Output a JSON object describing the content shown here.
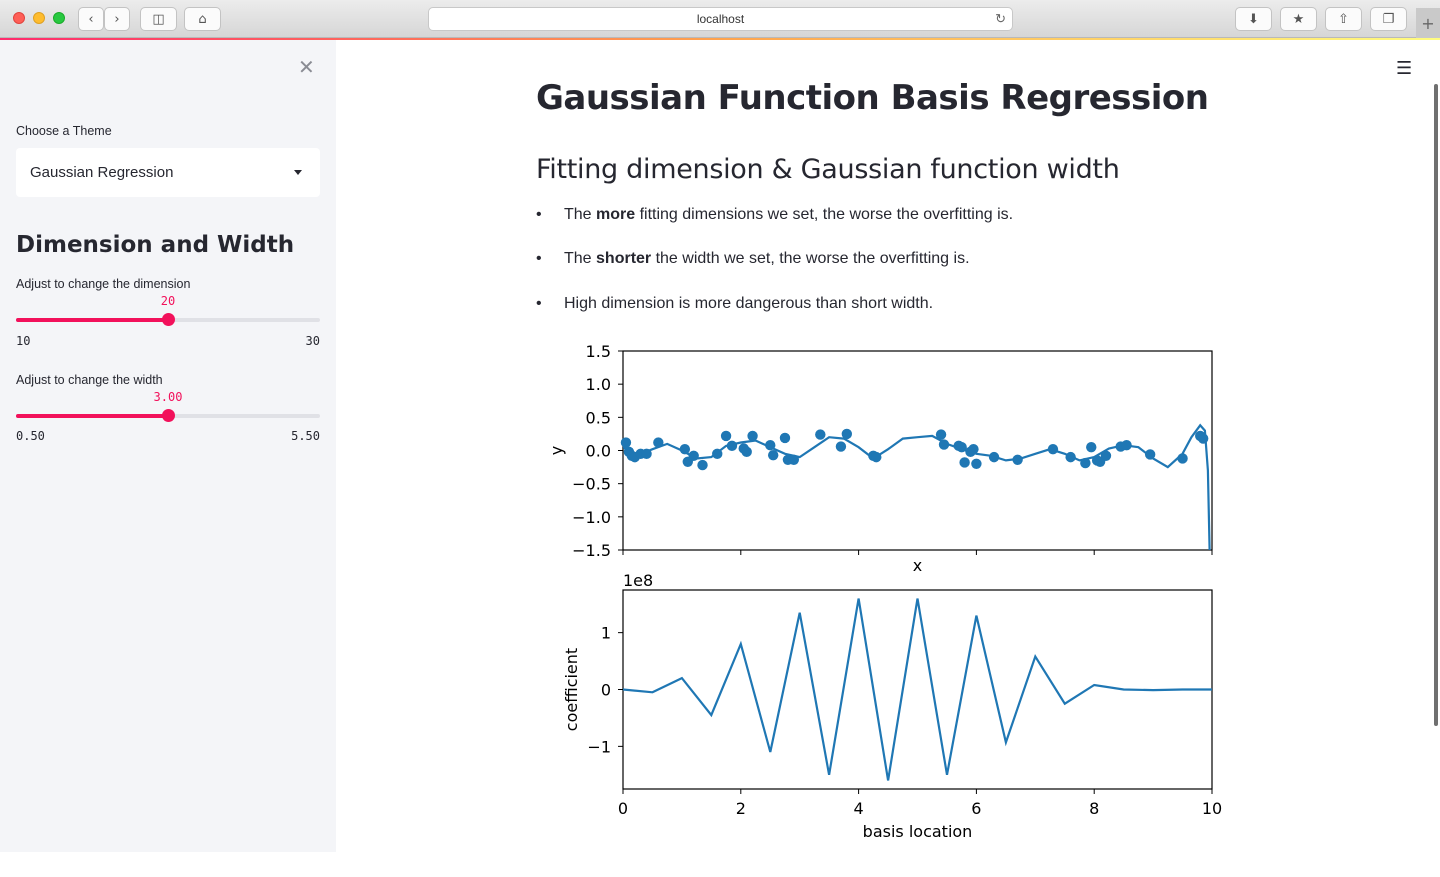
{
  "browser": {
    "url": "localhost",
    "icons": [
      "back-icon",
      "forward-icon",
      "sidebar-icon",
      "home-icon",
      "reload-icon",
      "download-icon",
      "bookmark-icon",
      "share-icon",
      "tabs-icon",
      "new-tab-icon"
    ]
  },
  "sidebar": {
    "theme_label": "Choose a Theme",
    "theme_value": "Gaussian Regression",
    "heading": "Dimension and Width",
    "dimension_slider": {
      "label": "Adjust to change the dimension",
      "value": "20",
      "min": "10",
      "max": "30",
      "fraction": 0.5
    },
    "width_slider": {
      "label": "Adjust to change the width",
      "value": "3.00",
      "min": "0.50",
      "max": "5.50",
      "fraction": 0.5
    },
    "accent_color": "#f2115b"
  },
  "main": {
    "title": "Gaussian Function Basis Regression",
    "subtitle": "Fitting dimension & Gaussian function width",
    "bullets": [
      {
        "pre": "The ",
        "bold": "more",
        "post": " fitting dimensions we set, the worse the overfitting is."
      },
      {
        "pre": "The ",
        "bold": "shorter",
        "post": " the width we set, the worse the overfitting is."
      },
      {
        "pre": "",
        "bold": "",
        "post": "High dimension is more dangerous than short width."
      }
    ]
  },
  "chart_data": [
    {
      "type": "scatter",
      "xlabel": "x",
      "ylabel": "y",
      "xlim": [
        0,
        10
      ],
      "ylim": [
        -1.5,
        1.5
      ],
      "yticks": [
        "1.5",
        "1.0",
        "0.5",
        "0.0",
        "−0.5",
        "−1.0",
        "−1.5"
      ],
      "ytick_values": [
        1.5,
        1.0,
        0.5,
        0.0,
        -0.5,
        -1.0,
        -1.5
      ],
      "xticks_values": [
        0,
        2,
        4,
        6,
        8,
        10
      ],
      "color": "#1f77b4",
      "points": {
        "x": [
          0.05,
          0.1,
          0.15,
          0.2,
          0.3,
          0.4,
          0.6,
          1.05,
          1.1,
          1.2,
          1.35,
          1.6,
          1.75,
          1.85,
          2.05,
          2.1,
          2.2,
          2.5,
          2.55,
          2.75,
          2.8,
          2.9,
          3.35,
          3.7,
          3.8,
          4.25,
          4.3,
          5.4,
          5.45,
          5.7,
          5.75,
          5.8,
          5.9,
          5.95,
          6.0,
          6.3,
          6.7,
          7.3,
          7.6,
          7.85,
          7.95,
          8.05,
          8.1,
          8.2,
          8.45,
          8.55,
          8.95,
          9.5,
          9.8,
          9.85
        ],
        "y": [
          0.12,
          -0.02,
          -0.08,
          -0.1,
          -0.05,
          -0.05,
          0.12,
          0.02,
          -0.17,
          -0.08,
          -0.22,
          -0.05,
          0.22,
          0.07,
          0.03,
          -0.02,
          0.22,
          0.08,
          -0.07,
          0.19,
          -0.14,
          -0.14,
          0.24,
          0.06,
          0.25,
          -0.08,
          -0.1,
          0.24,
          0.09,
          0.07,
          0.05,
          -0.18,
          -0.02,
          0.02,
          -0.2,
          -0.1,
          -0.14,
          0.02,
          -0.1,
          -0.19,
          0.05,
          -0.15,
          -0.17,
          -0.08,
          0.06,
          0.08,
          -0.06,
          -0.12,
          0.22,
          0.18
        ]
      },
      "curve": {
        "x": [
          0,
          0.25,
          0.5,
          0.75,
          1.0,
          1.25,
          1.5,
          1.75,
          2.0,
          2.25,
          2.5,
          2.75,
          3.0,
          3.25,
          3.5,
          3.75,
          4.0,
          4.25,
          4.5,
          4.75,
          5.0,
          5.25,
          5.5,
          5.75,
          6.0,
          6.25,
          6.5,
          6.75,
          7.0,
          7.25,
          7.5,
          7.75,
          8.0,
          8.25,
          8.5,
          8.75,
          9.0,
          9.25,
          9.5,
          9.65,
          9.8,
          9.88,
          9.93,
          9.96
        ],
        "y": [
          0.05,
          -0.07,
          0.02,
          0.1,
          0.0,
          -0.12,
          -0.1,
          0.07,
          0.12,
          0.15,
          0.05,
          -0.05,
          -0.1,
          0.05,
          0.2,
          0.18,
          0.05,
          -0.12,
          0.02,
          0.18,
          0.2,
          0.22,
          0.1,
          0.02,
          -0.05,
          -0.08,
          -0.15,
          -0.12,
          -0.05,
          0.02,
          -0.05,
          -0.15,
          -0.1,
          0.03,
          0.08,
          0.05,
          -0.12,
          -0.25,
          -0.05,
          0.2,
          0.38,
          0.3,
          -0.3,
          -1.5
        ]
      }
    },
    {
      "type": "line",
      "xlabel": "basis location",
      "ylabel": "coefficient",
      "offset_label": "1e8",
      "xlim": [
        0,
        10
      ],
      "ylim": [
        -1.75,
        1.75
      ],
      "yticks": [
        "1",
        "0",
        "−1"
      ],
      "ytick_values": [
        1,
        0,
        -1
      ],
      "xticks": [
        "0",
        "2",
        "4",
        "6",
        "8",
        "10"
      ],
      "xtick_values": [
        0,
        2,
        4,
        6,
        8,
        10
      ],
      "color": "#1f77b4",
      "series": [
        {
          "x": [
            0.0,
            0.5,
            1.0,
            1.5,
            2.0,
            2.5,
            3.0,
            3.5,
            4.0,
            4.5,
            5.0,
            5.5,
            6.0,
            6.5,
            7.0,
            7.5,
            8.0,
            8.5,
            9.0,
            9.5,
            10.0
          ],
          "values": [
            0.0,
            -0.05,
            0.2,
            -0.45,
            0.8,
            -1.1,
            1.35,
            -1.5,
            1.6,
            -1.6,
            1.6,
            -1.5,
            1.3,
            -0.93,
            0.58,
            -0.25,
            0.08,
            0.0,
            -0.01,
            0.0,
            0.0
          ]
        }
      ]
    }
  ]
}
